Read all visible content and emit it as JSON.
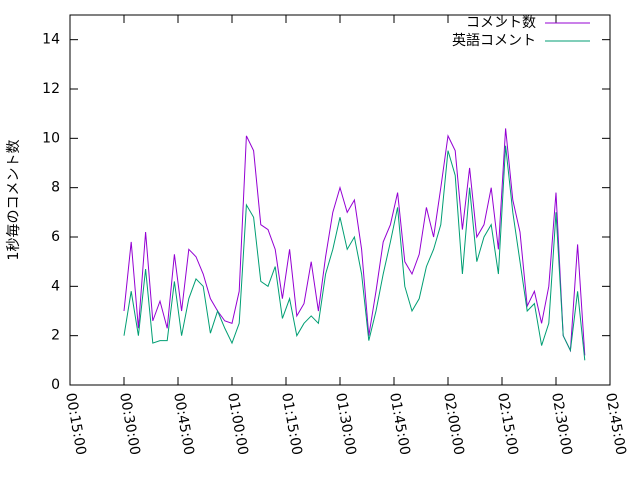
{
  "chart_data": {
    "type": "line",
    "y_label": "1秒毎のコメント数",
    "x": [
      "00:30:00",
      "00:32:00",
      "00:34:00",
      "00:36:00",
      "00:38:00",
      "00:40:00",
      "00:42:00",
      "00:44:00",
      "00:46:00",
      "00:48:00",
      "00:50:00",
      "00:52:00",
      "00:54:00",
      "00:56:00",
      "00:58:00",
      "01:00:00",
      "01:02:00",
      "01:04:00",
      "01:06:00",
      "01:08:00",
      "01:10:00",
      "01:12:00",
      "01:14:00",
      "01:16:00",
      "01:18:00",
      "01:20:00",
      "01:22:00",
      "01:24:00",
      "01:26:00",
      "01:28:00",
      "01:30:00",
      "01:32:00",
      "01:34:00",
      "01:36:00",
      "01:38:00",
      "01:40:00",
      "01:42:00",
      "01:44:00",
      "01:46:00",
      "01:48:00",
      "01:50:00",
      "01:52:00",
      "01:54:00",
      "01:56:00",
      "01:58:00",
      "02:00:00",
      "02:02:00",
      "02:04:00",
      "02:06:00",
      "02:08:00",
      "02:10:00",
      "02:12:00",
      "02:14:00",
      "02:16:00",
      "02:18:00",
      "02:20:00",
      "02:22:00",
      "02:24:00",
      "02:26:00",
      "02:28:00",
      "02:30:00",
      "02:32:00",
      "02:34:00",
      "02:36:00",
      "02:38:00"
    ],
    "series": [
      {
        "name": "コメント数",
        "color": "#9400d3",
        "values": [
          3.0,
          5.8,
          2.3,
          6.2,
          2.6,
          3.4,
          2.3,
          5.3,
          3.0,
          5.5,
          5.2,
          4.5,
          3.5,
          3.0,
          2.6,
          2.5,
          3.8,
          10.1,
          9.5,
          6.5,
          6.3,
          5.5,
          3.5,
          5.5,
          2.8,
          3.3,
          5.0,
          3.0,
          5.2,
          7.0,
          8.0,
          7.0,
          7.5,
          5.5,
          2.0,
          3.8,
          5.8,
          6.5,
          7.8,
          5.0,
          4.5,
          5.3,
          7.2,
          6.0,
          8.0,
          10.1,
          9.5,
          6.3,
          8.8,
          6.0,
          6.5,
          8.0,
          5.5,
          10.4,
          7.5,
          6.2,
          3.2,
          3.8,
          2.5,
          4.0,
          7.8,
          2.0,
          1.4,
          5.7,
          1.2
        ]
      },
      {
        "name": "英語コメント",
        "color": "#009e73",
        "values": [
          2.0,
          3.8,
          2.0,
          4.7,
          1.7,
          1.8,
          1.8,
          4.2,
          2.0,
          3.5,
          4.3,
          4.0,
          2.1,
          3.0,
          2.3,
          1.7,
          2.5,
          7.3,
          6.8,
          4.2,
          4.0,
          4.8,
          2.7,
          3.5,
          2.0,
          2.5,
          2.8,
          2.5,
          4.5,
          5.5,
          6.8,
          5.5,
          6.0,
          4.5,
          1.8,
          3.0,
          4.5,
          5.8,
          7.2,
          4.0,
          3.0,
          3.5,
          4.8,
          5.5,
          6.5,
          9.5,
          8.5,
          4.5,
          8.0,
          5.0,
          6.0,
          6.5,
          4.5,
          9.7,
          7.0,
          5.0,
          3.0,
          3.3,
          1.6,
          2.5,
          7.0,
          2.0,
          1.4,
          3.8,
          1.0
        ]
      }
    ],
    "xlim": [
      "00:15:00",
      "02:45:00"
    ],
    "xticks": [
      "00:15:00",
      "00:30:00",
      "00:45:00",
      "01:00:00",
      "01:15:00",
      "01:30:00",
      "01:45:00",
      "02:00:00",
      "02:15:00",
      "02:30:00",
      "02:45:00"
    ],
    "ylim": [
      0,
      15
    ],
    "yticks": [
      0,
      2,
      4,
      6,
      8,
      10,
      12,
      14
    ],
    "legend": "top-right"
  }
}
